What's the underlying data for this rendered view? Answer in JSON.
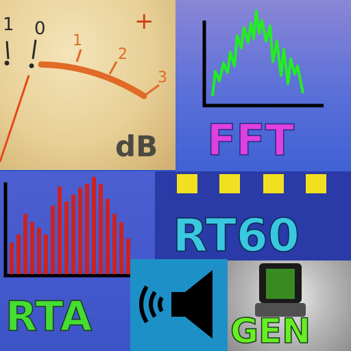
{
  "vu_meter": {
    "scale_labels": [
      "1",
      "0",
      "1",
      "2",
      "3"
    ],
    "plus_sign": "+",
    "unit": "dB"
  },
  "fft": {
    "label": "FFT"
  },
  "rta": {
    "label": "RTA"
  },
  "rt60": {
    "label": "RT60"
  },
  "gen": {
    "label": "GEN"
  },
  "colors": {
    "fft_label": "#e040e0",
    "rta_label": "#44dd33",
    "rt60_label": "#39c8e0",
    "gen_label": "#66ee22",
    "rt60_squares": "#f2e020",
    "rta_bars": "#cc2222",
    "fft_trace": "#22ee22",
    "needle": "#e24a18"
  }
}
